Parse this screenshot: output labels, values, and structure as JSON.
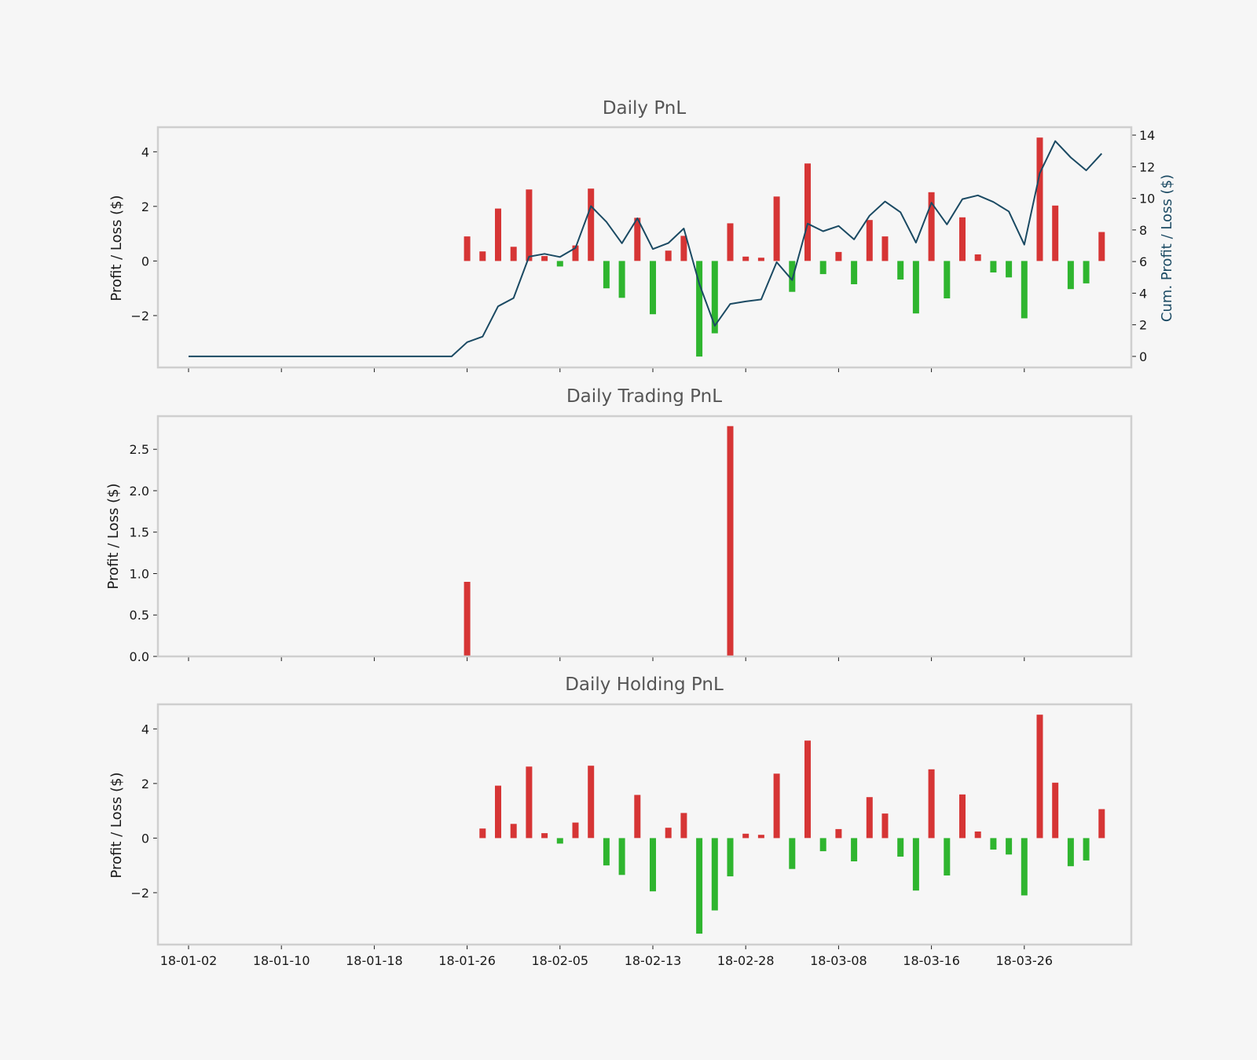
{
  "colors": {
    "profit": "#d63535",
    "loss": "#2fb52f",
    "cumulative_line": "#1b4a63",
    "background": "#f6f6f6",
    "frame": "#cfcfcf"
  },
  "shared_x": {
    "tick_labels": [
      "18-01-02",
      "18-01-10",
      "18-01-18",
      "18-01-26",
      "18-02-05",
      "18-02-13",
      "18-02-28",
      "18-03-08",
      "18-03-16",
      "18-03-26"
    ],
    "tick_label_visible_on": "bottom panel only"
  },
  "chart_data": [
    {
      "type": "bar",
      "title": "Daily PnL",
      "ylabel": "Profit / Loss ($)",
      "ylim": [
        -3.9,
        4.9
      ],
      "yticks": [
        -2,
        0,
        2,
        4
      ],
      "grid": false,
      "values": [
        0,
        0,
        0,
        0,
        0,
        0,
        0,
        0,
        0,
        0,
        0,
        0,
        0,
        0,
        0,
        0,
        0,
        0,
        0.9,
        0.35,
        1.92,
        0.52,
        2.62,
        0.18,
        -0.2,
        0.57,
        2.65,
        -1.0,
        -1.35,
        1.58,
        -1.95,
        0.38,
        0.92,
        -3.5,
        -2.65,
        1.38,
        0.16,
        0.12,
        2.36,
        -1.13,
        3.57,
        -0.48,
        0.33,
        -0.85,
        1.5,
        0.9,
        -0.68,
        -1.92,
        2.52,
        -1.37,
        1.6,
        0.24,
        -0.42,
        -0.6,
        -2.1,
        4.52,
        2.03,
        -1.03,
        -0.82,
        1.06
      ],
      "secondary_axis": {
        "ylabel": "Cum. Profit / Loss ($)",
        "ylim": [
          -0.7,
          14.5
        ],
        "yticks": [
          0,
          2,
          4,
          6,
          8,
          10,
          12,
          14
        ],
        "series": [
          {
            "type": "line",
            "values": [
              0,
              0,
              0,
              0,
              0,
              0,
              0,
              0,
              0,
              0,
              0,
              0,
              0,
              0,
              0,
              0,
              0,
              0,
              0.9,
              1.25,
              3.17,
              3.69,
              6.31,
              6.49,
              6.29,
              6.86,
              9.51,
              8.51,
              7.16,
              8.74,
              6.79,
              7.17,
              8.09,
              4.59,
              1.94,
              3.32,
              3.48,
              3.6,
              5.96,
              4.83,
              8.4,
              7.92,
              8.25,
              7.4,
              8.9,
              9.8,
              9.12,
              7.2,
              9.72,
              8.35,
              9.95,
              10.19,
              9.77,
              9.17,
              7.07,
              11.59,
              13.62,
              12.59,
              11.77,
              12.83
            ]
          }
        ]
      }
    },
    {
      "type": "bar",
      "title": "Daily Trading PnL",
      "ylabel": "Profit / Loss ($)",
      "ylim": [
        0,
        2.9
      ],
      "yticks": [
        0.0,
        0.5,
        1.0,
        1.5,
        2.0,
        2.5
      ],
      "ytick_labels": [
        "0.0",
        "0.5",
        "1.0",
        "1.5",
        "2.0",
        "2.5"
      ],
      "grid": false,
      "values": [
        0,
        0,
        0,
        0,
        0,
        0,
        0,
        0,
        0,
        0,
        0,
        0,
        0,
        0,
        0,
        0,
        0,
        0,
        0.9,
        0,
        0,
        0,
        0,
        0,
        0,
        0,
        0,
        0,
        0,
        0,
        0,
        0,
        0,
        0,
        0,
        2.78,
        0,
        0,
        0,
        0,
        0,
        0,
        0,
        0,
        0,
        0,
        0,
        0,
        0,
        0,
        0,
        0,
        0,
        0,
        0,
        0,
        0,
        0,
        0,
        0
      ]
    },
    {
      "type": "bar",
      "title": "Daily Holding PnL",
      "ylabel": "Profit / Loss ($)",
      "ylim": [
        -3.9,
        4.9
      ],
      "yticks": [
        -2,
        0,
        2,
        4
      ],
      "grid": false,
      "values": [
        0,
        0,
        0,
        0,
        0,
        0,
        0,
        0,
        0,
        0,
        0,
        0,
        0,
        0,
        0,
        0,
        0,
        0,
        0,
        0.35,
        1.92,
        0.52,
        2.62,
        0.18,
        -0.2,
        0.57,
        2.65,
        -1.0,
        -1.35,
        1.58,
        -1.95,
        0.38,
        0.92,
        -3.5,
        -2.65,
        -1.4,
        0.16,
        0.12,
        2.36,
        -1.13,
        3.57,
        -0.48,
        0.33,
        -0.85,
        1.5,
        0.9,
        -0.68,
        -1.92,
        2.52,
        -1.37,
        1.6,
        0.24,
        -0.42,
        -0.6,
        -2.1,
        4.52,
        2.03,
        -1.03,
        -0.82,
        1.06
      ]
    }
  ]
}
